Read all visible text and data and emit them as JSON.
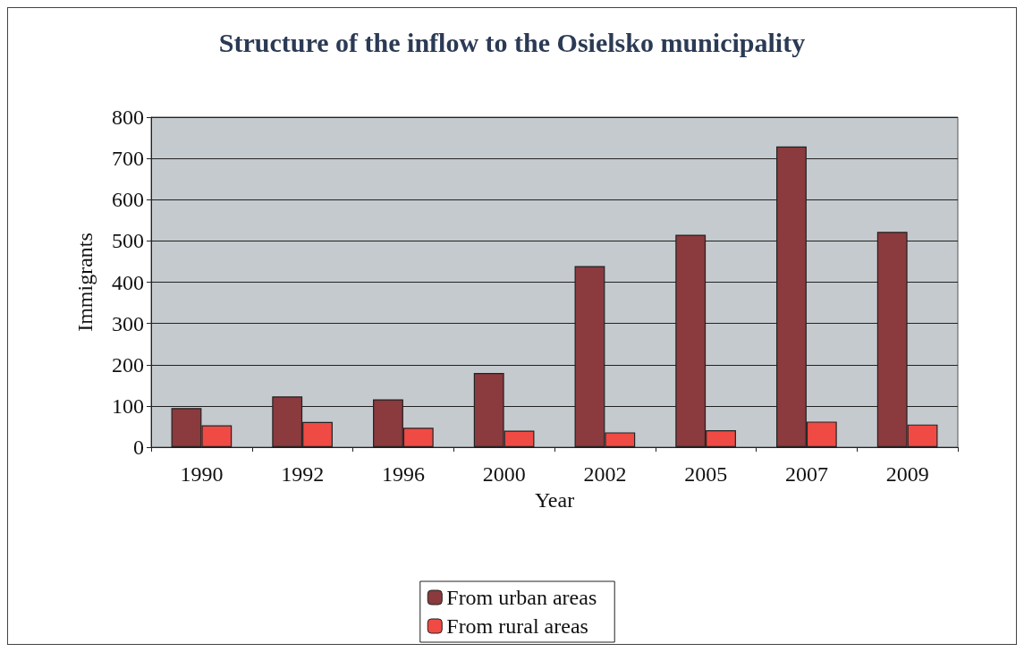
{
  "chart_data": {
    "type": "bar",
    "title": "Structure of the inflow to the Osielsko municipality",
    "xlabel": "Year",
    "ylabel": "Immigrants",
    "categories": [
      "1990",
      "1992",
      "1996",
      "2000",
      "2002",
      "2005",
      "2007",
      "2009"
    ],
    "series": [
      {
        "name": "From urban areas",
        "color": "#8b3a3e",
        "values": [
          95,
          123,
          116,
          180,
          439,
          515,
          729,
          522
        ]
      },
      {
        "name": "From rural areas",
        "color": "#f04a44",
        "values": [
          53,
          61,
          47,
          40,
          36,
          41,
          62,
          55
        ]
      }
    ],
    "ylim": [
      0,
      800
    ],
    "yticks": [
      0,
      100,
      200,
      300,
      400,
      500,
      600,
      700,
      800
    ],
    "grid": "y",
    "legend": "bottom"
  }
}
